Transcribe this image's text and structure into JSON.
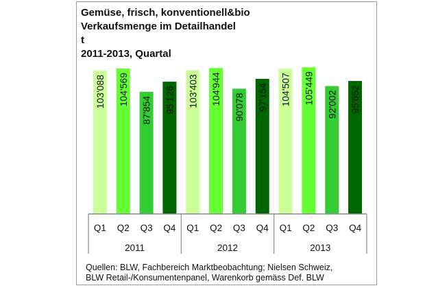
{
  "chart_data": {
    "type": "bar",
    "title": [
      "Gemüse, frisch, konventionell&bio",
      "Verkaufsmenge im Detailhandel",
      "t",
      "2011-2013, Quartal"
    ],
    "groups": [
      "2011",
      "2012",
      "2013"
    ],
    "categories": [
      "Q1",
      "Q2",
      "Q3",
      "Q4",
      "Q1",
      "Q2",
      "Q3",
      "Q4",
      "Q1",
      "Q2",
      "Q3",
      "Q4"
    ],
    "values": [
      103088,
      104569,
      87854,
      95126,
      103403,
      104944,
      90078,
      97154,
      104507,
      105449,
      92002,
      95652
    ],
    "labels": [
      "103'088",
      "104'569",
      "87'854",
      "95'126",
      "103'403",
      "104'944",
      "90'078",
      "97'154",
      "104'507",
      "105'449",
      "92'002",
      "95'652"
    ],
    "colors": {
      "Q1": "#ccff99",
      "Q2": "#66ff33",
      "Q3": "#33cc33",
      "Q4": "#006600"
    },
    "ylim": [
      0,
      110000
    ],
    "grid": false,
    "source": [
      "Quellen: BLW, Fachbereich Marktbeobachtung; Nielsen Schweiz,",
      "BLW Retail-/Konsumentenpanel, Warenkorb gemäss Def. BLW"
    ]
  }
}
